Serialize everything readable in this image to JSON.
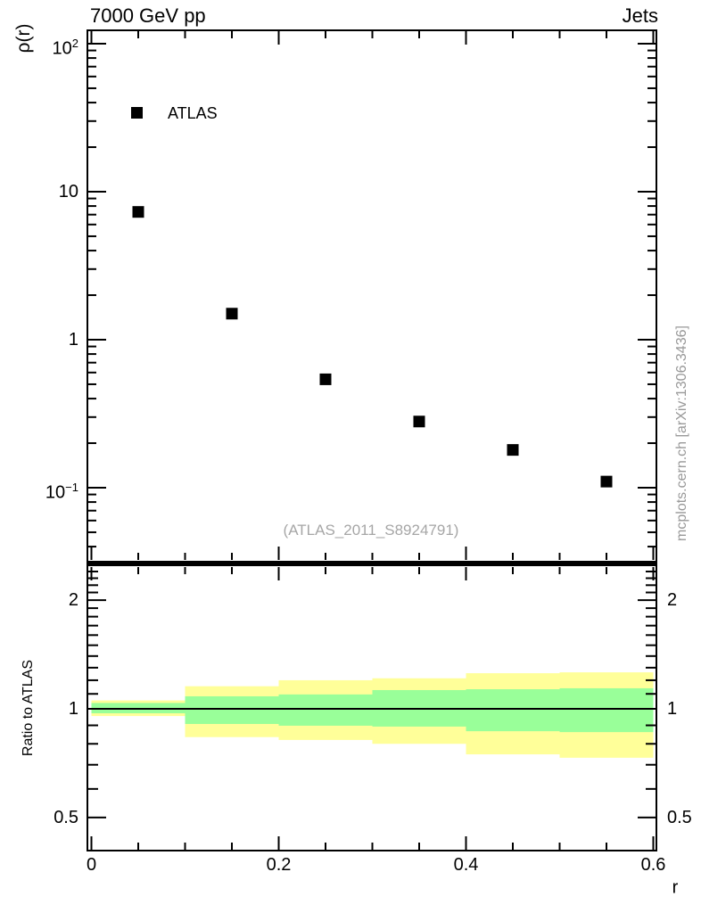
{
  "meta": {
    "side_note": "mcplots.cern.ch [arXiv:1306.3436]"
  },
  "colors": {
    "band_outer_yellow": "#ffff99",
    "band_inner_green": "#99ff99",
    "marker_black": "#000000",
    "muted_text_gray": "#a0a0a0"
  },
  "chart_data": [
    {
      "type": "scatter",
      "panel": "main",
      "title": "7000 GeV pp",
      "title_right": "Jets",
      "ylabel": "ρ(r)",
      "yscale": "log",
      "ylim": [
        0.03,
        125
      ],
      "xlim": [
        -0.006,
        0.606
      ],
      "grid": false,
      "watermark": "(ATLAS_2011_S8924791)",
      "legend": {
        "position": "top-left-inside",
        "label": "ATLAS",
        "marker": "filled-square"
      },
      "series": [
        {
          "name": "ATLAS",
          "marker": "filled-square",
          "color": "#000000",
          "x": [
            0.05,
            0.15,
            0.25,
            0.35,
            0.45,
            0.55
          ],
          "y": [
            7.3,
            1.5,
            0.54,
            0.28,
            0.18,
            0.11
          ]
        }
      ],
      "ytick_labels": [
        {
          "value": 100,
          "base": "10",
          "exp": "2"
        },
        {
          "value": 10,
          "base": "10",
          "exp": ""
        },
        {
          "value": 1,
          "base": "1",
          "exp": ""
        },
        {
          "value": 0.1,
          "base": "10",
          "exp": "−1"
        }
      ]
    },
    {
      "type": "ratio-bands",
      "panel": "ratio",
      "ylabel": "Ratio to ATLAS",
      "xlabel": "r",
      "yscale": "log",
      "ylim": [
        0.4,
        2.5
      ],
      "reference_line": 1,
      "yticks": [
        {
          "value": 2,
          "label": "2"
        },
        {
          "value": 1,
          "label": "1"
        },
        {
          "value": 0.5,
          "label": "0.5"
        }
      ],
      "xticks": [
        {
          "value": 0,
          "label": "0"
        },
        {
          "value": 0.2,
          "label": "0.2"
        },
        {
          "value": 0.4,
          "label": "0.4"
        },
        {
          "value": 0.6,
          "label": "0.6"
        }
      ],
      "xtick_minor_step": 0.05,
      "band_colors": {
        "outer": "#ffff99",
        "inner": "#99ff99"
      },
      "bands": [
        {
          "r": [
            0.0,
            0.1
          ],
          "outer": [
            0.955,
            1.055
          ],
          "inner": [
            0.972,
            1.038
          ]
        },
        {
          "r": [
            0.1,
            0.2
          ],
          "outer": [
            0.835,
            1.155
          ],
          "inner": [
            0.908,
            1.083
          ]
        },
        {
          "r": [
            0.2,
            0.3
          ],
          "outer": [
            0.82,
            1.2
          ],
          "inner": [
            0.898,
            1.096
          ]
        },
        {
          "r": [
            0.3,
            0.4
          ],
          "outer": [
            0.8,
            1.215
          ],
          "inner": [
            0.893,
            1.127
          ]
        },
        {
          "r": [
            0.4,
            0.5
          ],
          "outer": [
            0.748,
            1.255
          ],
          "inner": [
            0.867,
            1.133
          ]
        },
        {
          "r": [
            0.5,
            0.6
          ],
          "outer": [
            0.732,
            1.262
          ],
          "inner": [
            0.862,
            1.14
          ]
        }
      ]
    }
  ]
}
